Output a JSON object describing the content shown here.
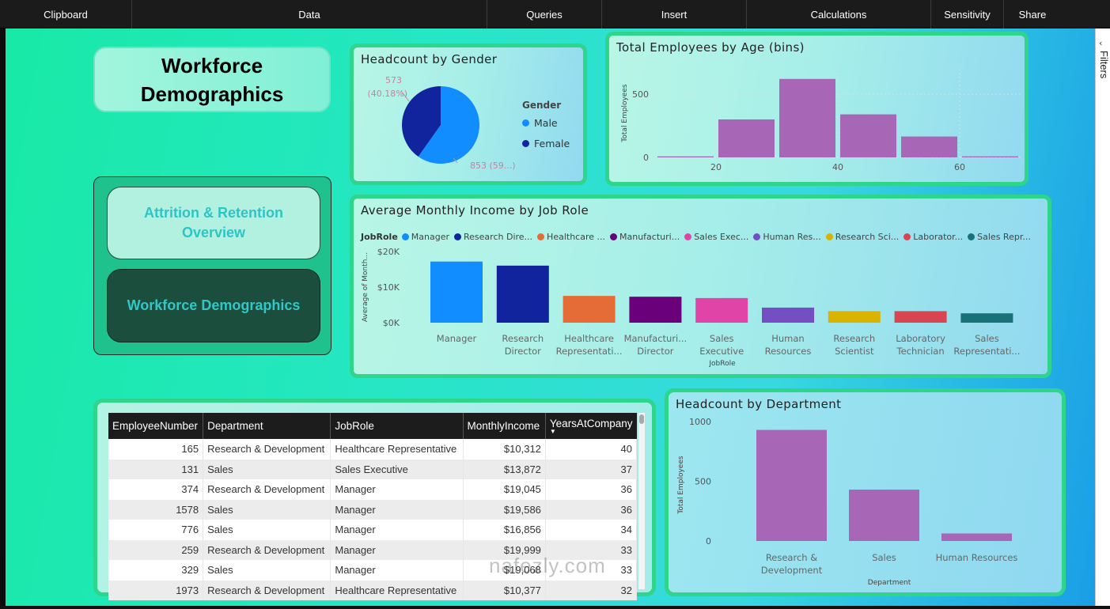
{
  "ribbon": {
    "groups": [
      "Clipboard",
      "Data",
      "Queries",
      "Insert",
      "Calculations",
      "Sensitivity",
      "Share"
    ]
  },
  "title_card": {
    "line1": "Workforce",
    "line2": "Demographics"
  },
  "nav": {
    "attrition_line1": "Attrition & Retention",
    "attrition_line2": "Overview",
    "workforce": "Workforce Demographics"
  },
  "filters_pane": {
    "label": "Filters"
  },
  "watermark": "nafezly.com",
  "colors": {
    "accent_green": "#2fd58a",
    "bar_purple": "#a767b6",
    "male": "#118dff",
    "female": "#12239e"
  },
  "gender_chart": {
    "title": "Headcount by Gender",
    "legend_title": "Gender",
    "female_label_1": "573",
    "female_label_2": "(40.18%)",
    "male_label": "853 (59...)",
    "chart_data": {
      "type": "pie",
      "title": "Headcount by Gender",
      "legend": [
        "Male",
        "Female"
      ],
      "slices": [
        {
          "name": "Male",
          "value": 853,
          "percent": 59.82,
          "color": "#118dff"
        },
        {
          "name": "Female",
          "value": 573,
          "percent": 40.18,
          "color": "#12239e"
        }
      ]
    }
  },
  "age_chart": {
    "title": "Total Employees by Age (bins)",
    "chart_data": {
      "type": "bar",
      "title": "Total Employees by Age (bins)",
      "xlabel": "",
      "ylabel": "Total Employees",
      "x_ticks": [
        20,
        40,
        60
      ],
      "y_ticks": [
        0,
        500
      ],
      "ylim": [
        0,
        700
      ],
      "bin_starts": [
        10,
        20,
        30,
        40,
        50,
        60
      ],
      "values": [
        8,
        300,
        620,
        340,
        165,
        8
      ]
    }
  },
  "income_chart": {
    "title": "Average Monthly Income by Job Role",
    "legend_title": "JobRole",
    "legend": [
      "Manager",
      "Research Dire...",
      "Healthcare ...",
      "Manufacturi...",
      "Sales Exec...",
      "Human Res...",
      "Research Sci...",
      "Laborator...",
      "Sales Repr..."
    ],
    "chart_data": {
      "type": "bar",
      "title": "Average Monthly Income by Job Role",
      "xlabel": "JobRole",
      "ylabel": "Average of Month...",
      "y_ticks": [
        "$0K",
        "$10K",
        "$20K"
      ],
      "ylim": [
        0,
        20000
      ],
      "categories": [
        [
          "Manager"
        ],
        [
          "Research",
          "Director"
        ],
        [
          "Healthcare",
          "Representati..."
        ],
        [
          "Manufacturi...",
          "Director"
        ],
        [
          "Sales",
          "Executive"
        ],
        [
          "Human",
          "Resources"
        ],
        [
          "Research",
          "Scientist"
        ],
        [
          "Laboratory",
          "Technician"
        ],
        [
          "Sales",
          "Representati..."
        ]
      ],
      "values": [
        17180,
        16030,
        7530,
        7300,
        6920,
        4240,
        3240,
        3240,
        2630
      ],
      "colors": [
        "#118dff",
        "#12239e",
        "#e66c37",
        "#6b007b",
        "#e044a7",
        "#744ec2",
        "#d9b300",
        "#d64550",
        "#197278"
      ]
    }
  },
  "dept_chart": {
    "title": "Headcount by Department",
    "chart_data": {
      "type": "bar",
      "title": "Headcount by Department",
      "xlabel": "Department",
      "ylabel": "Total Employees",
      "y_ticks": [
        0,
        500,
        1000
      ],
      "ylim": [
        0,
        1000
      ],
      "categories": [
        [
          "Research &",
          "Development"
        ],
        [
          "Sales"
        ],
        [
          "Human Resources"
        ]
      ],
      "values": [
        930,
        430,
        63
      ]
    }
  },
  "table": {
    "columns": [
      "EmployeeNumber",
      "Department",
      "JobRole",
      "MonthlyIncome",
      "YearsAtCompany"
    ],
    "rows": [
      [
        "165",
        "Research & Development",
        "Healthcare Representative",
        "$10,312",
        "40"
      ],
      [
        "131",
        "Sales",
        "Sales Executive",
        "$13,872",
        "37"
      ],
      [
        "374",
        "Research & Development",
        "Manager",
        "$19,045",
        "36"
      ],
      [
        "1578",
        "Sales",
        "Manager",
        "$19,586",
        "36"
      ],
      [
        "776",
        "Sales",
        "Manager",
        "$16,856",
        "34"
      ],
      [
        "259",
        "Research & Development",
        "Manager",
        "$19,999",
        "33"
      ],
      [
        "329",
        "Sales",
        "Manager",
        "$19,068",
        "33"
      ],
      [
        "1973",
        "Research & Development",
        "Healthcare Representative",
        "$10,377",
        "32"
      ]
    ]
  }
}
